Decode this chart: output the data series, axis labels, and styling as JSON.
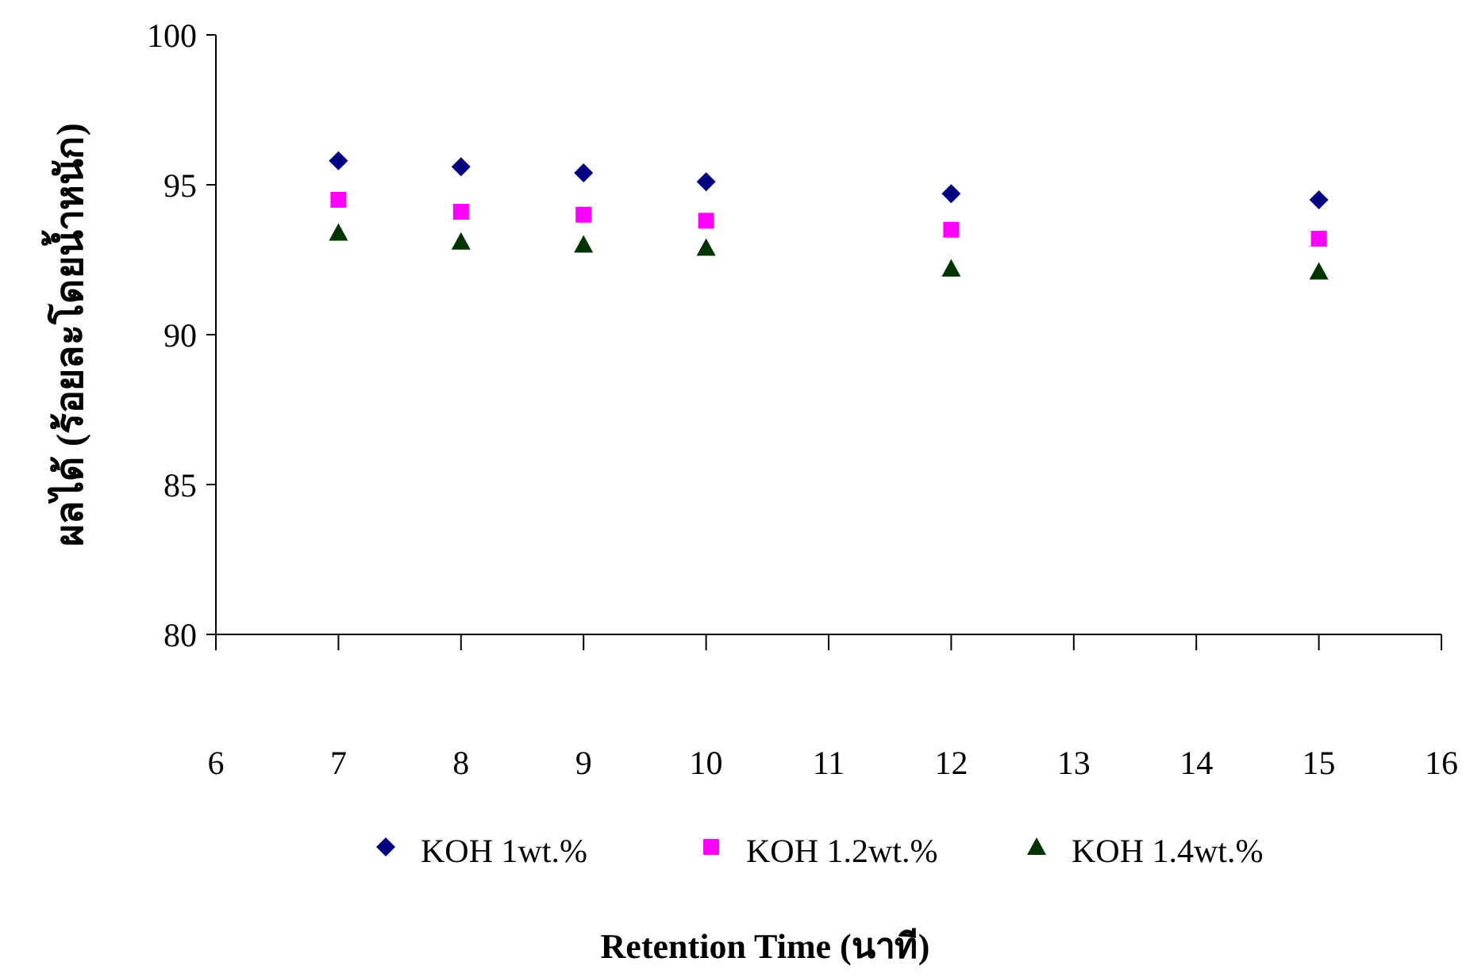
{
  "chart_data": {
    "type": "scatter",
    "xlabel": "Retention Time (นาที)",
    "ylabel": "ผลได้ (ร้อยละโดยน้ำหนัก)",
    "x": [
      7,
      8,
      9,
      10,
      12,
      15
    ],
    "xlim": [
      6,
      16
    ],
    "xticks": [
      6,
      7,
      8,
      9,
      10,
      11,
      12,
      13,
      14,
      15,
      16
    ],
    "ylim": [
      80,
      100
    ],
    "yticks": [
      80,
      85,
      90,
      95,
      100
    ],
    "grid": false,
    "legend": "bottom",
    "series": [
      {
        "name": "KOH 1wt.%",
        "color": "#000080",
        "marker": "diamond",
        "values": [
          95.8,
          95.6,
          95.4,
          95.1,
          94.7,
          94.5
        ]
      },
      {
        "name": "KOH 1.2wt.%",
        "color": "#ff00ff",
        "marker": "square",
        "values": [
          94.5,
          94.1,
          94.0,
          93.8,
          93.5,
          93.2
        ]
      },
      {
        "name": "KOH 1.4wt.%",
        "color": "#003300",
        "marker": "triangle",
        "values": [
          93.4,
          93.1,
          93.0,
          92.9,
          92.2,
          92.1
        ]
      }
    ]
  }
}
